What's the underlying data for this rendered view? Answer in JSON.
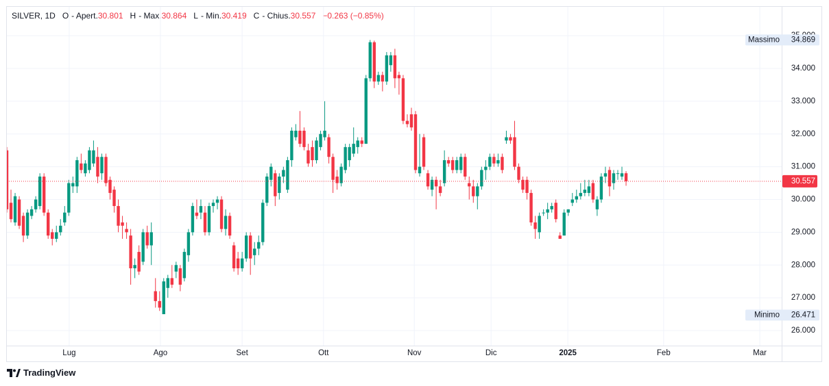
{
  "header": {
    "symbol": "SILVER, 1D",
    "o_key": "O",
    "open_label": "- Apert.",
    "open": "30.801",
    "h_key": "H",
    "high_label": "- Max.",
    "high": "30.864",
    "l_key": "L",
    "low_label": "- Min.",
    "low": "30.419",
    "c_key": "C",
    "close_label": "- Chius.",
    "close": "30.557",
    "change": "−0.263 (−0.85%)"
  },
  "footer": {
    "brand": "TradingView"
  },
  "chart_data": {
    "type": "candlestick",
    "up_color": "#089981",
    "down_color": "#f23645",
    "grid": true,
    "xlim": [
      0,
      187.7
    ],
    "ylim": [
      25.54,
      35.88
    ],
    "xticks": [
      {
        "value": 15.1,
        "label": "Lug"
      },
      {
        "value": 37.2,
        "label": "Ago"
      },
      {
        "value": 57.0,
        "label": "Set"
      },
      {
        "value": 76.7,
        "label": "Ott"
      },
      {
        "value": 98.7,
        "label": "Nov"
      },
      {
        "value": 117.3,
        "label": "Dic"
      },
      {
        "value": 135.9,
        "label": "2025"
      },
      {
        "value": 159.1,
        "label": "Feb"
      },
      {
        "value": 182.4,
        "label": "Mar"
      }
    ],
    "yticks": [
      {
        "value": 26,
        "label": "26.000"
      },
      {
        "value": 27,
        "label": "27.000"
      },
      {
        "value": 28,
        "label": "28.000"
      },
      {
        "value": 29,
        "label": "29.000"
      },
      {
        "value": 30,
        "label": "30.000"
      },
      {
        "value": 31,
        "label": "31.000"
      },
      {
        "value": 32,
        "label": "32.000"
      },
      {
        "value": 33,
        "label": "33.000"
      },
      {
        "value": 34,
        "label": "34.000"
      },
      {
        "value": 35,
        "label": "35.000"
      }
    ],
    "last_price": {
      "value": 30.557
    },
    "max_marker": {
      "label": "Massimo",
      "value": 34.869
    },
    "min_marker": {
      "label": "Minimo",
      "value": 26.471
    },
    "candles": [
      {
        "open": 31.5,
        "high": 31.6,
        "low": 29.6,
        "close": 29.7
      },
      {
        "open": 29.9,
        "high": 30.3,
        "low": 29.3,
        "close": 29.4
      },
      {
        "open": 29.3,
        "high": 30.2,
        "low": 29.2,
        "close": 30.1
      },
      {
        "open": 30.0,
        "high": 30.1,
        "low": 29.1,
        "close": 29.2
      },
      {
        "open": 29.5,
        "high": 29.6,
        "low": 28.7,
        "close": 28.9
      },
      {
        "open": 28.9,
        "high": 29.7,
        "low": 28.8,
        "close": 29.6
      },
      {
        "open": 29.5,
        "high": 29.8,
        "low": 29.4,
        "close": 29.7
      },
      {
        "open": 29.7,
        "high": 30.1,
        "low": 29.6,
        "close": 30.0
      },
      {
        "open": 29.8,
        "high": 30.8,
        "low": 29.7,
        "close": 30.7
      },
      {
        "open": 30.7,
        "high": 30.8,
        "low": 29.5,
        "close": 29.6
      },
      {
        "open": 29.6,
        "high": 29.7,
        "low": 28.8,
        "close": 28.9
      },
      {
        "open": 29.0,
        "high": 29.1,
        "low": 28.6,
        "close": 28.8
      },
      {
        "open": 28.8,
        "high": 29.2,
        "low": 28.7,
        "close": 29.0
      },
      {
        "open": 29.0,
        "high": 29.4,
        "low": 28.9,
        "close": 29.2
      },
      {
        "open": 29.3,
        "high": 29.8,
        "low": 29.2,
        "close": 29.6
      },
      {
        "open": 29.6,
        "high": 30.6,
        "low": 29.5,
        "close": 30.5
      },
      {
        "open": 30.4,
        "high": 30.7,
        "low": 30.2,
        "close": 30.5
      },
      {
        "open": 30.4,
        "high": 31.3,
        "low": 30.2,
        "close": 31.2
      },
      {
        "open": 31.1,
        "high": 31.4,
        "low": 30.8,
        "close": 30.9
      },
      {
        "open": 30.8,
        "high": 31.2,
        "low": 30.7,
        "close": 31.1
      },
      {
        "open": 30.9,
        "high": 31.6,
        "low": 30.8,
        "close": 31.5
      },
      {
        "open": 31.1,
        "high": 31.8,
        "low": 31.0,
        "close": 31.5
      },
      {
        "open": 31.3,
        "high": 31.6,
        "low": 30.5,
        "close": 30.7
      },
      {
        "open": 30.8,
        "high": 31.4,
        "low": 30.6,
        "close": 31.3
      },
      {
        "open": 31.3,
        "high": 31.4,
        "low": 30.4,
        "close": 30.5
      },
      {
        "open": 30.6,
        "high": 30.7,
        "low": 30.0,
        "close": 30.2
      },
      {
        "open": 30.3,
        "high": 30.4,
        "low": 29.6,
        "close": 29.8
      },
      {
        "open": 29.8,
        "high": 30.0,
        "low": 29.0,
        "close": 29.2
      },
      {
        "open": 29.3,
        "high": 29.5,
        "low": 28.8,
        "close": 29.2
      },
      {
        "open": 29.1,
        "high": 29.3,
        "low": 28.8,
        "close": 29.0
      },
      {
        "open": 28.9,
        "high": 29.1,
        "low": 27.4,
        "close": 27.9
      },
      {
        "open": 27.9,
        "high": 28.2,
        "low": 27.6,
        "close": 28.0
      },
      {
        "open": 28.4,
        "high": 28.6,
        "low": 27.7,
        "close": 27.8
      },
      {
        "open": 28.1,
        "high": 29.1,
        "low": 28.0,
        "close": 29.0
      },
      {
        "open": 29.0,
        "high": 29.2,
        "low": 28.5,
        "close": 28.6
      },
      {
        "open": 28.6,
        "high": 29.3,
        "low": 28.0,
        "close": 29.0
      },
      {
        "open": 27.2,
        "high": 27.6,
        "low": 26.7,
        "close": 26.9
      },
      {
        "open": 26.9,
        "high": 27.2,
        "low": 26.6,
        "close": 26.7
      },
      {
        "open": 26.5,
        "high": 27.6,
        "low": 26.5,
        "close": 27.5
      },
      {
        "open": 27.3,
        "high": 27.7,
        "low": 27.0,
        "close": 27.6
      },
      {
        "open": 27.6,
        "high": 28.0,
        "low": 27.3,
        "close": 27.4
      },
      {
        "open": 27.8,
        "high": 28.1,
        "low": 27.6,
        "close": 28.0
      },
      {
        "open": 27.9,
        "high": 28.0,
        "low": 27.2,
        "close": 27.4
      },
      {
        "open": 27.6,
        "high": 28.5,
        "low": 27.5,
        "close": 28.4
      },
      {
        "open": 28.3,
        "high": 29.1,
        "low": 28.1,
        "close": 29.0
      },
      {
        "open": 29.0,
        "high": 29.9,
        "low": 28.9,
        "close": 29.8
      },
      {
        "open": 29.6,
        "high": 30.0,
        "low": 29.4,
        "close": 29.5
      },
      {
        "open": 29.6,
        "high": 30.0,
        "low": 29.4,
        "close": 29.8
      },
      {
        "open": 29.6,
        "high": 29.8,
        "low": 28.9,
        "close": 29.0
      },
      {
        "open": 29.0,
        "high": 29.9,
        "low": 28.9,
        "close": 29.8
      },
      {
        "open": 29.8,
        "high": 30.0,
        "low": 29.6,
        "close": 29.9
      },
      {
        "open": 29.9,
        "high": 30.1,
        "low": 29.7,
        "close": 30.0
      },
      {
        "open": 30.0,
        "high": 30.1,
        "low": 29.0,
        "close": 29.1
      },
      {
        "open": 29.1,
        "high": 29.7,
        "low": 28.9,
        "close": 29.5
      },
      {
        "open": 29.5,
        "high": 29.6,
        "low": 28.8,
        "close": 28.9
      },
      {
        "open": 28.6,
        "high": 28.7,
        "low": 27.8,
        "close": 27.9
      },
      {
        "open": 28.2,
        "high": 28.4,
        "low": 27.7,
        "close": 27.9
      },
      {
        "open": 27.9,
        "high": 28.4,
        "low": 27.8,
        "close": 28.2
      },
      {
        "open": 28.2,
        "high": 29.0,
        "low": 28.1,
        "close": 28.9
      },
      {
        "open": 28.9,
        "high": 29.0,
        "low": 27.7,
        "close": 28.2
      },
      {
        "open": 28.3,
        "high": 28.7,
        "low": 28.0,
        "close": 28.5
      },
      {
        "open": 28.5,
        "high": 28.9,
        "low": 28.3,
        "close": 28.7
      },
      {
        "open": 28.7,
        "high": 30.0,
        "low": 28.6,
        "close": 29.9
      },
      {
        "open": 29.9,
        "high": 30.8,
        "low": 29.8,
        "close": 30.7
      },
      {
        "open": 30.6,
        "high": 31.1,
        "low": 30.4,
        "close": 31.0
      },
      {
        "open": 30.8,
        "high": 30.9,
        "low": 29.8,
        "close": 30.1
      },
      {
        "open": 30.2,
        "high": 30.8,
        "low": 30.0,
        "close": 30.7
      },
      {
        "open": 30.7,
        "high": 31.0,
        "low": 30.5,
        "close": 30.9
      },
      {
        "open": 30.3,
        "high": 31.3,
        "low": 30.2,
        "close": 31.2
      },
      {
        "open": 31.2,
        "high": 32.2,
        "low": 31.0,
        "close": 32.1
      },
      {
        "open": 31.9,
        "high": 32.3,
        "low": 31.8,
        "close": 32.1
      },
      {
        "open": 32.1,
        "high": 32.7,
        "low": 31.6,
        "close": 31.7
      },
      {
        "open": 32.1,
        "high": 32.2,
        "low": 31.5,
        "close": 31.6
      },
      {
        "open": 31.5,
        "high": 31.7,
        "low": 31.0,
        "close": 31.1
      },
      {
        "open": 31.6,
        "high": 31.8,
        "low": 31.0,
        "close": 31.2
      },
      {
        "open": 31.2,
        "high": 31.9,
        "low": 31.1,
        "close": 31.8
      },
      {
        "open": 31.6,
        "high": 32.1,
        "low": 31.5,
        "close": 32.0
      },
      {
        "open": 31.9,
        "high": 33.0,
        "low": 31.8,
        "close": 32.1
      },
      {
        "open": 31.9,
        "high": 32.0,
        "low": 31.1,
        "close": 31.3
      },
      {
        "open": 31.3,
        "high": 31.4,
        "low": 30.2,
        "close": 30.6
      },
      {
        "open": 30.7,
        "high": 30.9,
        "low": 30.3,
        "close": 30.5
      },
      {
        "open": 30.5,
        "high": 31.1,
        "low": 30.4,
        "close": 31.0
      },
      {
        "open": 30.9,
        "high": 31.7,
        "low": 30.8,
        "close": 31.6
      },
      {
        "open": 31.2,
        "high": 31.7,
        "low": 31.0,
        "close": 31.6
      },
      {
        "open": 31.4,
        "high": 32.2,
        "low": 31.3,
        "close": 31.7
      },
      {
        "open": 31.6,
        "high": 31.9,
        "low": 31.4,
        "close": 31.8
      },
      {
        "open": 31.8,
        "high": 31.9,
        "low": 31.6,
        "close": 31.7
      },
      {
        "open": 31.7,
        "high": 33.8,
        "low": 31.7,
        "close": 33.7
      },
      {
        "open": 33.7,
        "high": 34.869,
        "low": 33.6,
        "close": 34.8
      },
      {
        "open": 34.8,
        "high": 34.85,
        "low": 33.4,
        "close": 33.6
      },
      {
        "open": 33.6,
        "high": 33.9,
        "low": 33.5,
        "close": 33.8
      },
      {
        "open": 33.8,
        "high": 33.9,
        "low": 33.3,
        "close": 33.6
      },
      {
        "open": 33.6,
        "high": 34.5,
        "low": 33.5,
        "close": 34.4
      },
      {
        "open": 34.1,
        "high": 34.5,
        "low": 33.9,
        "close": 34.4
      },
      {
        "open": 34.4,
        "high": 34.6,
        "low": 33.4,
        "close": 33.7
      },
      {
        "open": 33.8,
        "high": 33.9,
        "low": 33.2,
        "close": 33.7
      },
      {
        "open": 33.7,
        "high": 33.8,
        "low": 32.3,
        "close": 32.4
      },
      {
        "open": 32.4,
        "high": 32.6,
        "low": 32.2,
        "close": 32.3
      },
      {
        "open": 32.6,
        "high": 32.8,
        "low": 32.1,
        "close": 32.2
      },
      {
        "open": 32.6,
        "high": 32.7,
        "low": 30.8,
        "close": 30.9
      },
      {
        "open": 30.8,
        "high": 32.0,
        "low": 30.7,
        "close": 31.0
      },
      {
        "open": 31.9,
        "high": 32.0,
        "low": 30.9,
        "close": 31.0
      },
      {
        "open": 30.8,
        "high": 30.9,
        "low": 30.3,
        "close": 30.4
      },
      {
        "open": 30.3,
        "high": 30.7,
        "low": 30.1,
        "close": 30.6
      },
      {
        "open": 30.6,
        "high": 30.7,
        "low": 29.7,
        "close": 30.4
      },
      {
        "open": 30.4,
        "high": 30.6,
        "low": 30.1,
        "close": 30.2
      },
      {
        "open": 30.5,
        "high": 31.5,
        "low": 30.4,
        "close": 31.2
      },
      {
        "open": 31.2,
        "high": 31.3,
        "low": 31.0,
        "close": 31.1
      },
      {
        "open": 31.2,
        "high": 31.3,
        "low": 30.8,
        "close": 30.9
      },
      {
        "open": 30.9,
        "high": 31.3,
        "low": 30.8,
        "close": 31.2
      },
      {
        "open": 30.9,
        "high": 31.4,
        "low": 30.8,
        "close": 31.3
      },
      {
        "open": 31.3,
        "high": 31.4,
        "low": 30.6,
        "close": 30.7
      },
      {
        "open": 30.5,
        "high": 30.7,
        "low": 30.0,
        "close": 30.4
      },
      {
        "open": 30.4,
        "high": 30.6,
        "low": 29.9,
        "close": 30.1
      },
      {
        "open": 30.1,
        "high": 30.5,
        "low": 29.7,
        "close": 30.4
      },
      {
        "open": 30.4,
        "high": 31.0,
        "low": 30.3,
        "close": 30.9
      },
      {
        "open": 30.9,
        "high": 31.2,
        "low": 30.6,
        "close": 31.0
      },
      {
        "open": 31.0,
        "high": 31.4,
        "low": 30.9,
        "close": 31.3
      },
      {
        "open": 31.3,
        "high": 31.4,
        "low": 31.0,
        "close": 31.1
      },
      {
        "open": 31.1,
        "high": 31.4,
        "low": 31.0,
        "close": 31.2
      },
      {
        "open": 31.3,
        "high": 31.4,
        "low": 30.8,
        "close": 30.9
      },
      {
        "open": 31.8,
        "high": 32.1,
        "low": 31.7,
        "close": 31.9
      },
      {
        "open": 31.9,
        "high": 32.0,
        "low": 31.7,
        "close": 31.8
      },
      {
        "open": 31.9,
        "high": 32.4,
        "low": 30.9,
        "close": 31.0
      },
      {
        "open": 31.0,
        "high": 31.1,
        "low": 30.5,
        "close": 30.6
      },
      {
        "open": 30.6,
        "high": 30.7,
        "low": 30.2,
        "close": 30.3
      },
      {
        "open": 30.6,
        "high": 30.7,
        "low": 30.0,
        "close": 30.2
      },
      {
        "open": 30.2,
        "high": 30.3,
        "low": 29.2,
        "close": 29.3
      },
      {
        "open": 29.3,
        "high": 29.5,
        "low": 28.8,
        "close": 29.1
      },
      {
        "open": 29.0,
        "high": 29.6,
        "low": 28.8,
        "close": 29.5
      },
      {
        "open": 29.6,
        "high": 29.7,
        "low": 29.5,
        "close": 29.6
      },
      {
        "open": 29.6,
        "high": 29.9,
        "low": 29.4,
        "close": 29.7
      },
      {
        "open": 29.7,
        "high": 29.9,
        "low": 29.6,
        "close": 29.8
      },
      {
        "open": 29.9,
        "high": 30.0,
        "low": 29.3,
        "close": 29.4
      },
      {
        "open": 28.9,
        "high": 29.0,
        "low": 28.8,
        "close": 28.8
      },
      {
        "open": 28.9,
        "high": 29.7,
        "low": 28.9,
        "close": 29.6
      },
      {
        "open": 29.6,
        "high": 29.7,
        "low": 29.5,
        "close": 29.7
      },
      {
        "open": 29.9,
        "high": 30.2,
        "low": 29.8,
        "close": 30.0
      },
      {
        "open": 30.0,
        "high": 30.3,
        "low": 29.9,
        "close": 30.1
      },
      {
        "open": 30.1,
        "high": 30.5,
        "low": 30.0,
        "close": 30.2
      },
      {
        "open": 30.2,
        "high": 30.6,
        "low": 30.1,
        "close": 30.3
      },
      {
        "open": 30.2,
        "high": 30.6,
        "low": 30.1,
        "close": 30.4
      },
      {
        "open": 30.5,
        "high": 30.6,
        "low": 29.9,
        "close": 30.0
      },
      {
        "open": 29.7,
        "high": 30.1,
        "low": 29.5,
        "close": 30.0
      },
      {
        "open": 30.0,
        "high": 30.8,
        "low": 29.9,
        "close": 30.7
      },
      {
        "open": 30.7,
        "high": 31.0,
        "low": 30.5,
        "close": 30.8
      },
      {
        "open": 30.9,
        "high": 31.0,
        "low": 30.1,
        "close": 30.4
      },
      {
        "open": 30.5,
        "high": 30.9,
        "low": 30.3,
        "close": 30.8
      },
      {
        "open": 30.8,
        "high": 30.9,
        "low": 30.6,
        "close": 30.8
      },
      {
        "open": 30.7,
        "high": 31.0,
        "low": 30.6,
        "close": 30.8
      },
      {
        "open": 30.801,
        "high": 30.864,
        "low": 30.419,
        "close": 30.557
      }
    ]
  }
}
